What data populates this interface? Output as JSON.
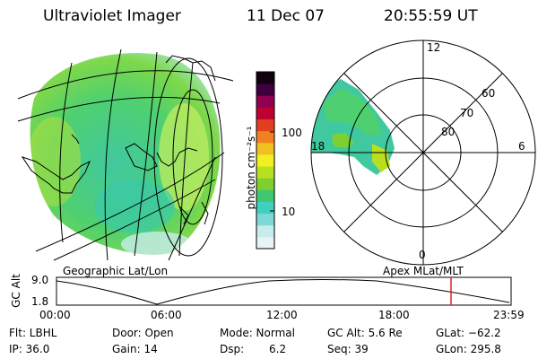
{
  "header": {
    "instrument": "Ultraviolet Imager",
    "date": "11 Dec 07",
    "time": "20:55:59 UT"
  },
  "colorbar": {
    "unit_label": "photon cm⁻²s⁻¹",
    "ticks": [
      "100",
      "10"
    ],
    "colors": [
      "#e8f4f4",
      "#c8ecec",
      "#7fd8d8",
      "#40d0c0",
      "#40c870",
      "#7ed030",
      "#b8e020",
      "#f0f020",
      "#f0c020",
      "#f08020",
      "#e04020",
      "#c00030",
      "#900050",
      "#400040",
      "#100010"
    ]
  },
  "geo_map": {
    "caption": "Geographic Lat/Lon"
  },
  "polar_plot": {
    "caption": "Apex MLat/MLT",
    "mlt_labels": {
      "top": "12",
      "left": "18",
      "right": "6",
      "bottom": "0"
    },
    "lat_labels": [
      "60",
      "70",
      "80"
    ]
  },
  "altitude_plot": {
    "axis_label": "GC Alt",
    "y_ticks": [
      "9.0",
      "1.8"
    ],
    "x_ticks": [
      "00:00",
      "06:00",
      "12:00",
      "18:00",
      "23:59"
    ],
    "marker_color": "#e02020"
  },
  "footer": {
    "flt": "Flt: LBHL",
    "ip": "IP: 36.0",
    "door": "Door: Open",
    "gain": "Gain: 14",
    "mode": "Mode: Normal",
    "dsp_label": "Dsp:",
    "dsp_value": "6.2",
    "gc_alt": "GC Alt: 5.6 Re",
    "seq": "Seq: 39",
    "glat": "GLat: −62.2",
    "glon": "GLon: 295.8"
  }
}
